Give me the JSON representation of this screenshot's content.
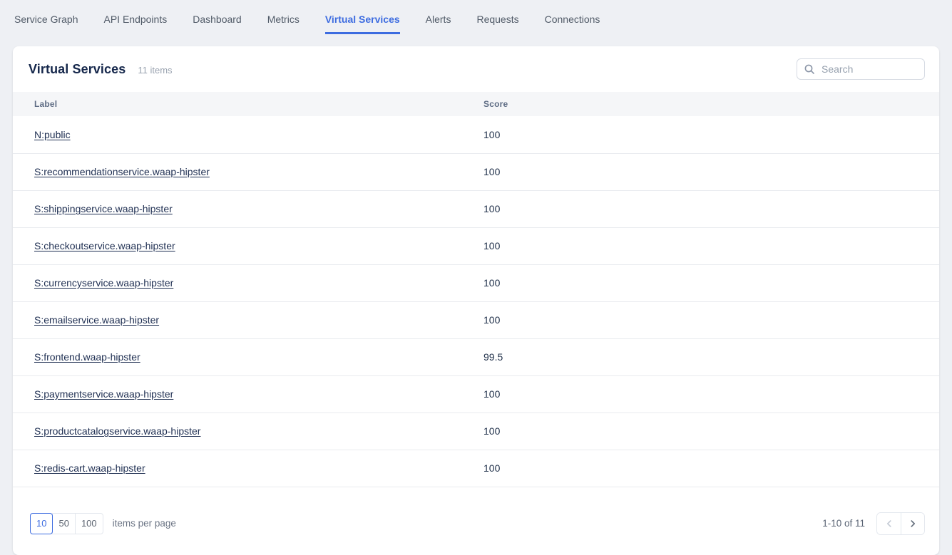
{
  "nav": {
    "tabs": [
      {
        "label": "Service Graph",
        "active": false
      },
      {
        "label": "API Endpoints",
        "active": false
      },
      {
        "label": "Dashboard",
        "active": false
      },
      {
        "label": "Metrics",
        "active": false
      },
      {
        "label": "Virtual Services",
        "active": true
      },
      {
        "label": "Alerts",
        "active": false
      },
      {
        "label": "Requests",
        "active": false
      },
      {
        "label": "Connections",
        "active": false
      }
    ]
  },
  "panel": {
    "title": "Virtual Services",
    "items_count": "11 items",
    "search": {
      "placeholder": "Search"
    }
  },
  "table": {
    "columns": [
      "Label",
      "Score"
    ],
    "rows": [
      {
        "label": "N:public",
        "score": "100"
      },
      {
        "label": "S:recommendationservice.waap-hipster",
        "score": "100"
      },
      {
        "label": "S:shippingservice.waap-hipster",
        "score": "100"
      },
      {
        "label": "S:checkoutservice.waap-hipster",
        "score": "100"
      },
      {
        "label": "S:currencyservice.waap-hipster",
        "score": "100"
      },
      {
        "label": "S:emailservice.waap-hipster",
        "score": "100"
      },
      {
        "label": "S:frontend.waap-hipster",
        "score": "99.5"
      },
      {
        "label": "S:paymentservice.waap-hipster",
        "score": "100"
      },
      {
        "label": "S:productcatalogservice.waap-hipster",
        "score": "100"
      },
      {
        "label": "S:redis-cart.waap-hipster",
        "score": "100"
      }
    ]
  },
  "pagination": {
    "page_sizes": [
      {
        "label": "10",
        "selected": true
      },
      {
        "label": "50",
        "selected": false
      },
      {
        "label": "100",
        "selected": false
      }
    ],
    "items_per_page_label": "items per page",
    "range_label": "1-10 of 11"
  },
  "colors": {
    "accent_blue": "#3d6ce0",
    "title_navy": "#15274b",
    "link_navy": "#1f2f52",
    "header_text": "#5e6c84",
    "muted_gray": "#9aa3b0",
    "page_background": "#eef0f4",
    "table_header_bg": "#f5f6f8",
    "row_border": "#e9ebef"
  }
}
